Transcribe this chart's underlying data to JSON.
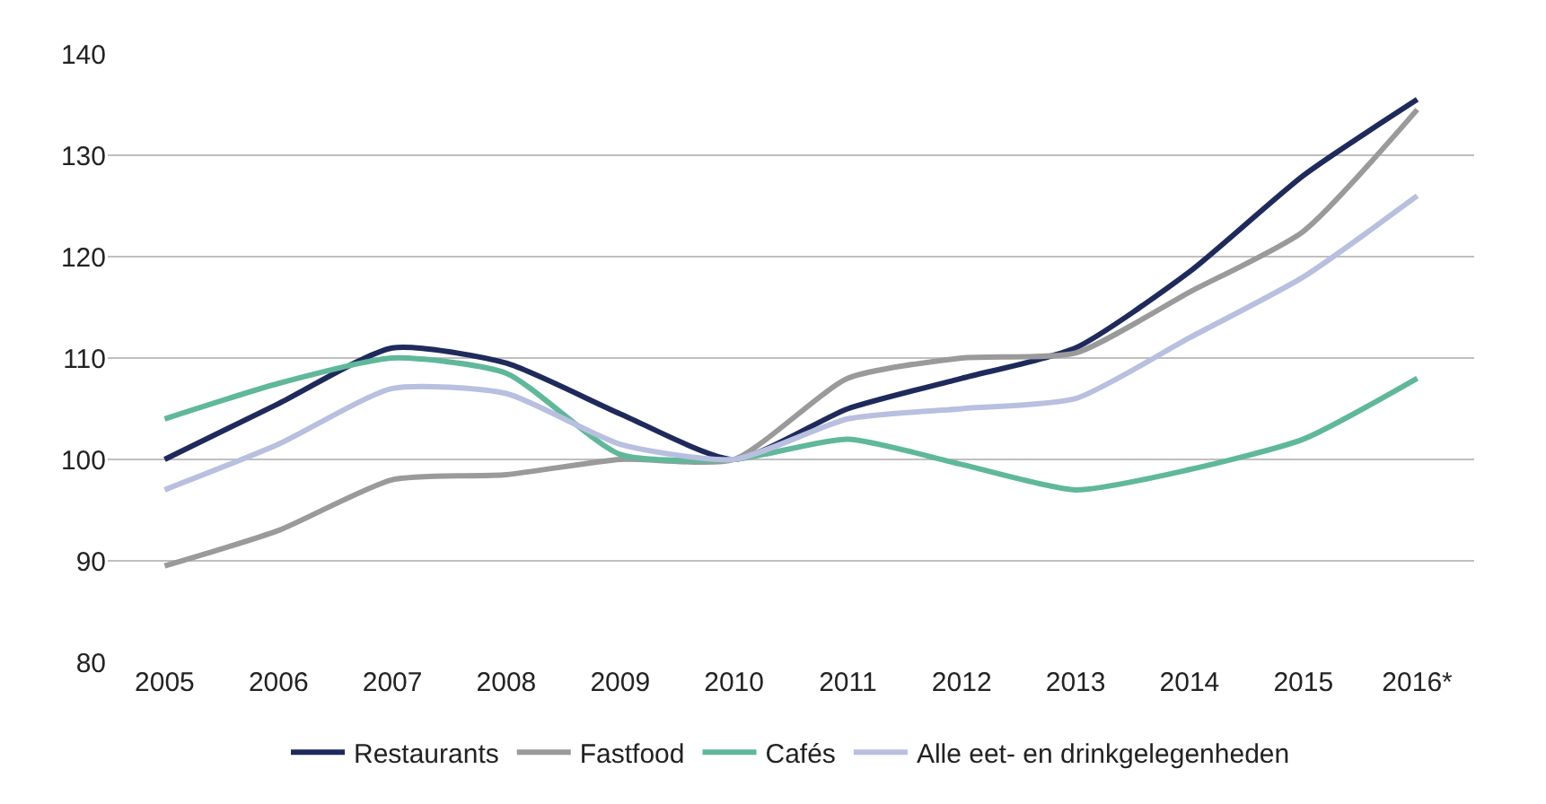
{
  "chart_data": {
    "type": "line",
    "categories": [
      "2005",
      "2006",
      "2007",
      "2008",
      "2009",
      "2010",
      "2011",
      "2012",
      "2013",
      "2014",
      "2015",
      "2016*"
    ],
    "series": [
      {
        "name": "Restaurants",
        "color": "#1f2a5c",
        "values": [
          100,
          105.5,
          111,
          109.5,
          104.5,
          100,
          105,
          108,
          111,
          118.5,
          128,
          135.5
        ]
      },
      {
        "name": "Fastfood",
        "color": "#9a9a9a",
        "values": [
          89.5,
          93,
          98,
          98.5,
          100,
          100,
          108,
          110,
          110.5,
          116.5,
          122.5,
          134.5
        ]
      },
      {
        "name": "Cafés",
        "color": "#5fb89a",
        "values": [
          104,
          107.5,
          110,
          108.5,
          100.5,
          100,
          102,
          99.5,
          97,
          99,
          102,
          108
        ]
      },
      {
        "name": "Alle eet- en drinkgelegenheden",
        "color": "#b8bfdf",
        "values": [
          97,
          101.5,
          107,
          106.5,
          101.5,
          100,
          104,
          105,
          106,
          112,
          118,
          126
        ]
      }
    ],
    "ylim": [
      80,
      140
    ],
    "yticks": [
      80,
      90,
      100,
      110,
      120,
      130,
      140
    ],
    "grid": "y",
    "legend": "bottom",
    "marker": "none",
    "line_style": "solid"
  }
}
